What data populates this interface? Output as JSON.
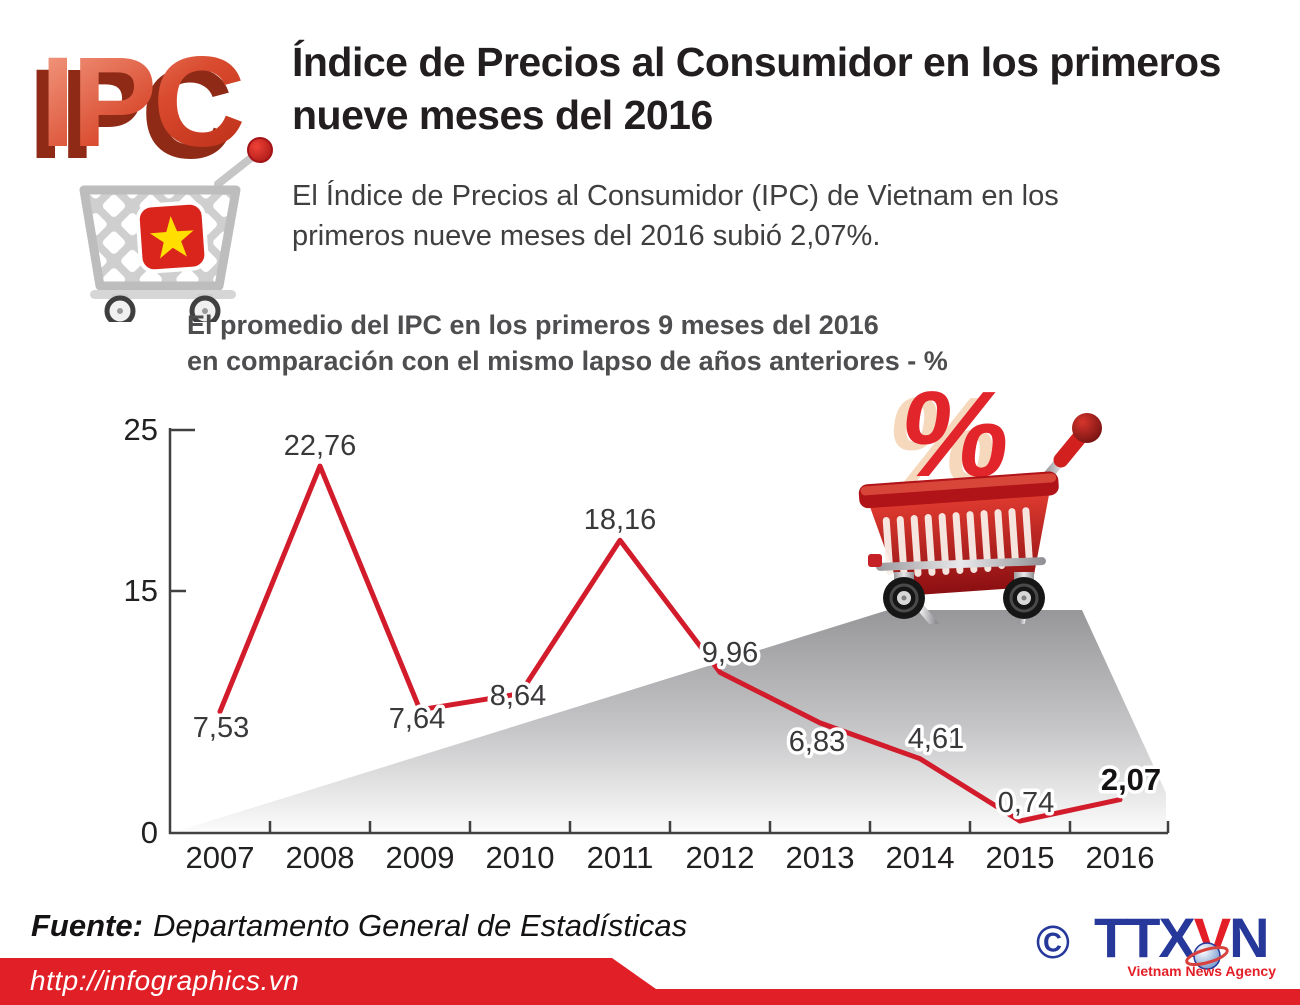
{
  "logo": {
    "text": "IPC"
  },
  "header": {
    "title": "Índice de Precios al Consumidor en los primeros\nnueve meses del 2016",
    "subtitle": "El Índice de Precios al Consumidor (IPC) de Vietnam en los\nprimeros nueve meses del 2016 subió 2,07%."
  },
  "chart_data": {
    "type": "line",
    "title": "El promedio del IPC en los primeros 9 meses del 2016\nen comparación con el mismo lapso de años anteriores - %",
    "categories": [
      "2007",
      "2008",
      "2009",
      "2010",
      "2011",
      "2012",
      "2013",
      "2014",
      "2015",
      "2016"
    ],
    "values": [
      7.53,
      22.76,
      7.64,
      8.64,
      18.16,
      9.96,
      6.83,
      4.61,
      0.74,
      2.07
    ],
    "value_labels": [
      "7,53",
      "22,76",
      "7,64",
      "8,64",
      "18,16",
      "9,96",
      "6,83",
      "4,61",
      "0,74",
      "2,07"
    ],
    "xlabel": "",
    "ylabel": "%",
    "ylim": [
      0,
      25
    ],
    "yticks": [
      0,
      15,
      25
    ],
    "ytick_labels": [
      "0",
      "15",
      "25"
    ],
    "grid": false,
    "legend": false,
    "line_color": "#d21c2c"
  },
  "footer": {
    "source_label": "Fuente:",
    "source_text": "Departamento General de Estadísticas",
    "url": "http://infographics.vn",
    "copyright": "©",
    "agency_abbr_a": "TTX",
    "agency_abbr_b": "V",
    "agency_abbr_c": "N",
    "agency_name": "Vietnam News Agency"
  },
  "colors": {
    "accent_red": "#d21c2c",
    "footer_bar_red": "#e01f26",
    "agency_blue": "#27389b",
    "agency_red": "#e31e26",
    "flag_red": "#da251d",
    "flag_star_yellow": "#ffde00"
  }
}
